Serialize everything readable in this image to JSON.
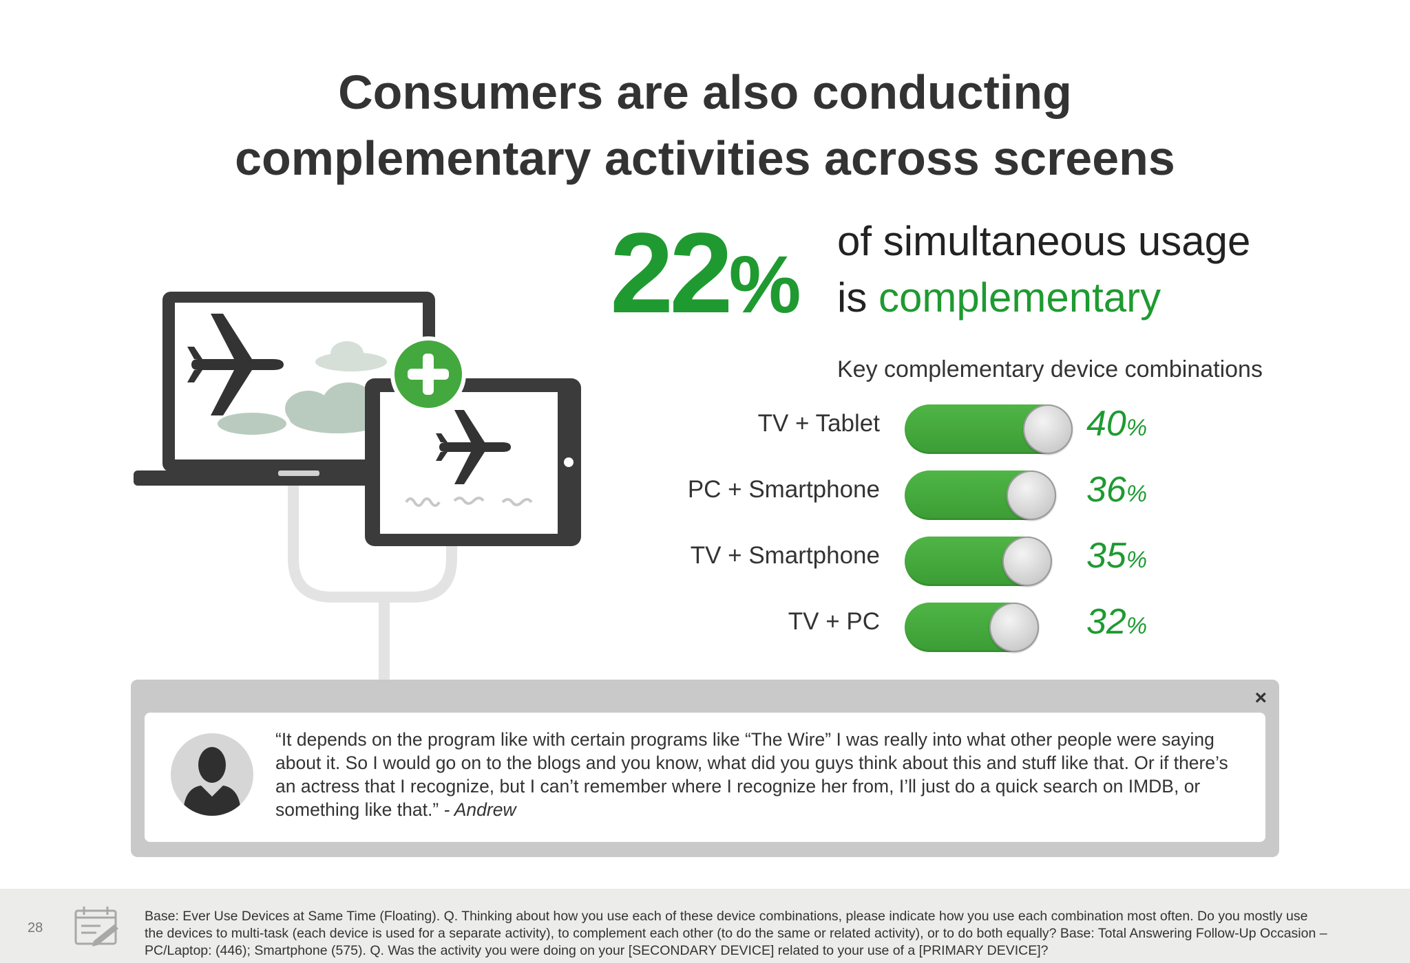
{
  "title": {
    "line1": "Consumers are also conducting",
    "line2": "complementary activities across screens"
  },
  "stat": {
    "value": "22",
    "unit": "%",
    "text_line1": "of simultaneous usage",
    "text_line2_prefix": "is ",
    "text_line2_highlight": "complementary"
  },
  "chart_data": {
    "type": "bar",
    "title": "Key complementary device combinations",
    "categories": [
      "TV + Tablet",
      "PC + Smartphone",
      "TV + Smartphone",
      "TV + PC"
    ],
    "values": [
      40,
      36,
      35,
      32
    ],
    "value_labels": [
      "40",
      "36",
      "35",
      "32"
    ],
    "unit": "%",
    "xlabel": "",
    "ylabel": "",
    "ylim": [
      0,
      40
    ]
  },
  "quote": {
    "close_label": "×",
    "text": "“It depends on the program like with certain programs like “The Wire” I was really into what other people were saying about it.  So I would go on to the blogs and you know, what did you guys think about this and stuff like that.  Or if there’s an actress that I recognize, but I can’t remember where I recognize her from, I’ll just do a quick search on IMDB, or something like that.”",
    "author": " - Andrew"
  },
  "footer": {
    "page_number": "28",
    "text_part1": "Base: Ever Use Devices at Same Time (Floating). Q. Thinking about how you use each of these device combinations, please indicate how you use each combination most often. Do you mostly use the devices to multi-task (each device is used for a separate activity), to complement each other (to do the same or related activity), or to do both equally? ",
    "text_part2": "Base: Total Answering Follow-Up Occasion – PC/Laptop: (446); Smartphone (575). Q. Was the activity you were doing on your [SECONDARY DEVICE] related to your use of a [PRIMARY DEVICE]?"
  },
  "colors": {
    "accent_green": "#1f9a31",
    "toggle_green": "#43a83d",
    "text_dark": "#333333"
  },
  "icons": [
    "laptop-icon",
    "tablet-icon",
    "airplane-icon",
    "cloud-icon",
    "plus-icon",
    "avatar-icon",
    "close-icon",
    "notepad-icon"
  ]
}
